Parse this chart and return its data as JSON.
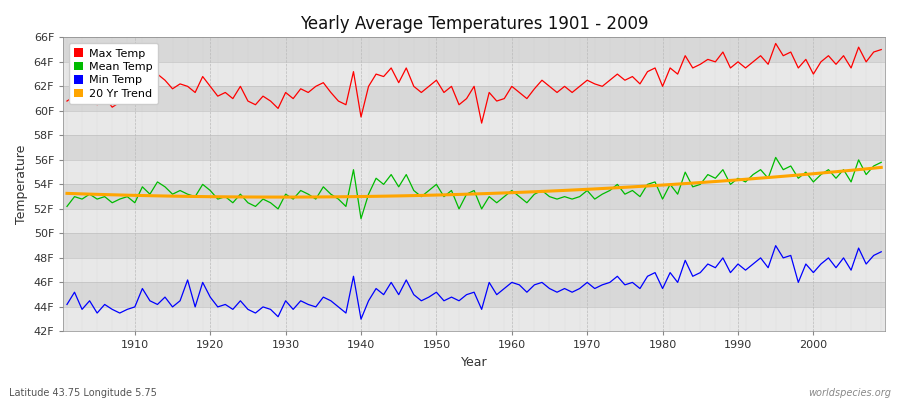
{
  "title": "Yearly Average Temperatures 1901 - 2009",
  "xlabel": "Year",
  "ylabel": "Temperature",
  "footnote_left": "Latitude 43.75 Longitude 5.75",
  "footnote_right": "worldspecies.org",
  "bg_color": "#ffffff",
  "plot_bg_color": "#ffffff",
  "band_color_light": "#e8e8e8",
  "band_color_dark": "#d0d0d0",
  "grid_color": "#ffffff",
  "vgrid_color": "#cccccc",
  "year_start": 1901,
  "year_end": 2009,
  "ylim_min": 42,
  "ylim_max": 66,
  "yticks": [
    42,
    44,
    46,
    48,
    50,
    52,
    54,
    56,
    58,
    60,
    62,
    64,
    66
  ],
  "xticks": [
    1910,
    1920,
    1930,
    1940,
    1950,
    1960,
    1970,
    1980,
    1990,
    2000
  ],
  "legend_labels": [
    "Max Temp",
    "Mean Temp",
    "Min Temp",
    "20 Yr Trend"
  ],
  "legend_colors": [
    "#ff0000",
    "#00bb00",
    "#0000ff",
    "#ffa500"
  ],
  "max_temps": [
    60.8,
    61.2,
    61.0,
    61.5,
    60.5,
    61.1,
    60.3,
    60.7,
    61.3,
    60.9,
    62.3,
    61.8,
    63.0,
    62.5,
    61.8,
    62.2,
    62.0,
    61.5,
    62.8,
    62.0,
    61.2,
    61.5,
    61.0,
    62.0,
    60.8,
    60.5,
    61.2,
    60.8,
    60.2,
    61.5,
    61.0,
    61.8,
    61.5,
    62.0,
    62.3,
    61.5,
    60.8,
    60.5,
    63.2,
    59.5,
    62.0,
    63.0,
    62.8,
    63.5,
    62.3,
    63.5,
    62.0,
    61.5,
    62.0,
    62.5,
    61.5,
    62.0,
    60.5,
    61.0,
    62.0,
    59.0,
    61.5,
    60.8,
    61.0,
    62.0,
    61.5,
    61.0,
    61.8,
    62.5,
    62.0,
    61.5,
    62.0,
    61.5,
    62.0,
    62.5,
    62.2,
    62.0,
    62.5,
    63.0,
    62.5,
    62.8,
    62.2,
    63.2,
    63.5,
    62.0,
    63.5,
    63.0,
    64.5,
    63.5,
    63.8,
    64.2,
    64.0,
    64.8,
    63.5,
    64.0,
    63.5,
    64.0,
    64.5,
    63.8,
    65.5,
    64.5,
    64.8,
    63.5,
    64.2,
    63.0,
    64.0,
    64.5,
    63.8,
    64.5,
    63.5,
    65.2,
    64.0,
    64.8,
    65.0
  ],
  "mean_temps": [
    52.2,
    53.0,
    52.8,
    53.2,
    52.8,
    53.0,
    52.5,
    52.8,
    53.0,
    52.5,
    53.8,
    53.2,
    54.2,
    53.8,
    53.2,
    53.5,
    53.2,
    53.0,
    54.0,
    53.5,
    52.8,
    53.0,
    52.5,
    53.2,
    52.5,
    52.2,
    52.8,
    52.5,
    52.0,
    53.2,
    52.8,
    53.5,
    53.2,
    52.8,
    53.8,
    53.2,
    52.8,
    52.2,
    55.2,
    51.2,
    53.2,
    54.5,
    54.0,
    54.8,
    53.8,
    54.8,
    53.5,
    53.0,
    53.5,
    54.0,
    53.0,
    53.5,
    52.0,
    53.2,
    53.5,
    52.0,
    53.0,
    52.5,
    53.0,
    53.5,
    53.0,
    52.5,
    53.2,
    53.5,
    53.0,
    52.8,
    53.0,
    52.8,
    53.0,
    53.5,
    52.8,
    53.2,
    53.5,
    54.0,
    53.2,
    53.5,
    53.0,
    54.0,
    54.2,
    52.8,
    54.0,
    53.2,
    55.0,
    53.8,
    54.0,
    54.8,
    54.5,
    55.2,
    54.0,
    54.5,
    54.2,
    54.8,
    55.2,
    54.5,
    56.2,
    55.2,
    55.5,
    54.5,
    55.0,
    54.2,
    54.8,
    55.2,
    54.5,
    55.2,
    54.2,
    56.0,
    54.8,
    55.5,
    55.8
  ],
  "min_temps": [
    44.2,
    45.2,
    43.8,
    44.5,
    43.5,
    44.2,
    43.8,
    43.5,
    43.8,
    44.0,
    45.5,
    44.5,
    44.2,
    44.8,
    44.0,
    44.5,
    46.2,
    44.0,
    46.0,
    44.8,
    44.0,
    44.2,
    43.8,
    44.5,
    43.8,
    43.5,
    44.0,
    43.8,
    43.2,
    44.5,
    43.8,
    44.5,
    44.2,
    44.0,
    44.8,
    44.5,
    44.0,
    43.5,
    46.5,
    43.0,
    44.5,
    45.5,
    45.0,
    46.0,
    45.0,
    46.2,
    45.0,
    44.5,
    44.8,
    45.2,
    44.5,
    44.8,
    44.5,
    45.0,
    45.2,
    43.8,
    46.0,
    45.0,
    45.5,
    46.0,
    45.8,
    45.2,
    45.8,
    46.0,
    45.5,
    45.2,
    45.5,
    45.2,
    45.5,
    46.0,
    45.5,
    45.8,
    46.0,
    46.5,
    45.8,
    46.0,
    45.5,
    46.5,
    46.8,
    45.5,
    46.8,
    46.0,
    47.8,
    46.5,
    46.8,
    47.5,
    47.2,
    48.0,
    46.8,
    47.5,
    47.0,
    47.5,
    48.0,
    47.2,
    49.0,
    48.0,
    48.2,
    46.0,
    47.5,
    46.8,
    47.5,
    48.0,
    47.2,
    48.0,
    47.0,
    48.8,
    47.5,
    48.2,
    48.5
  ]
}
